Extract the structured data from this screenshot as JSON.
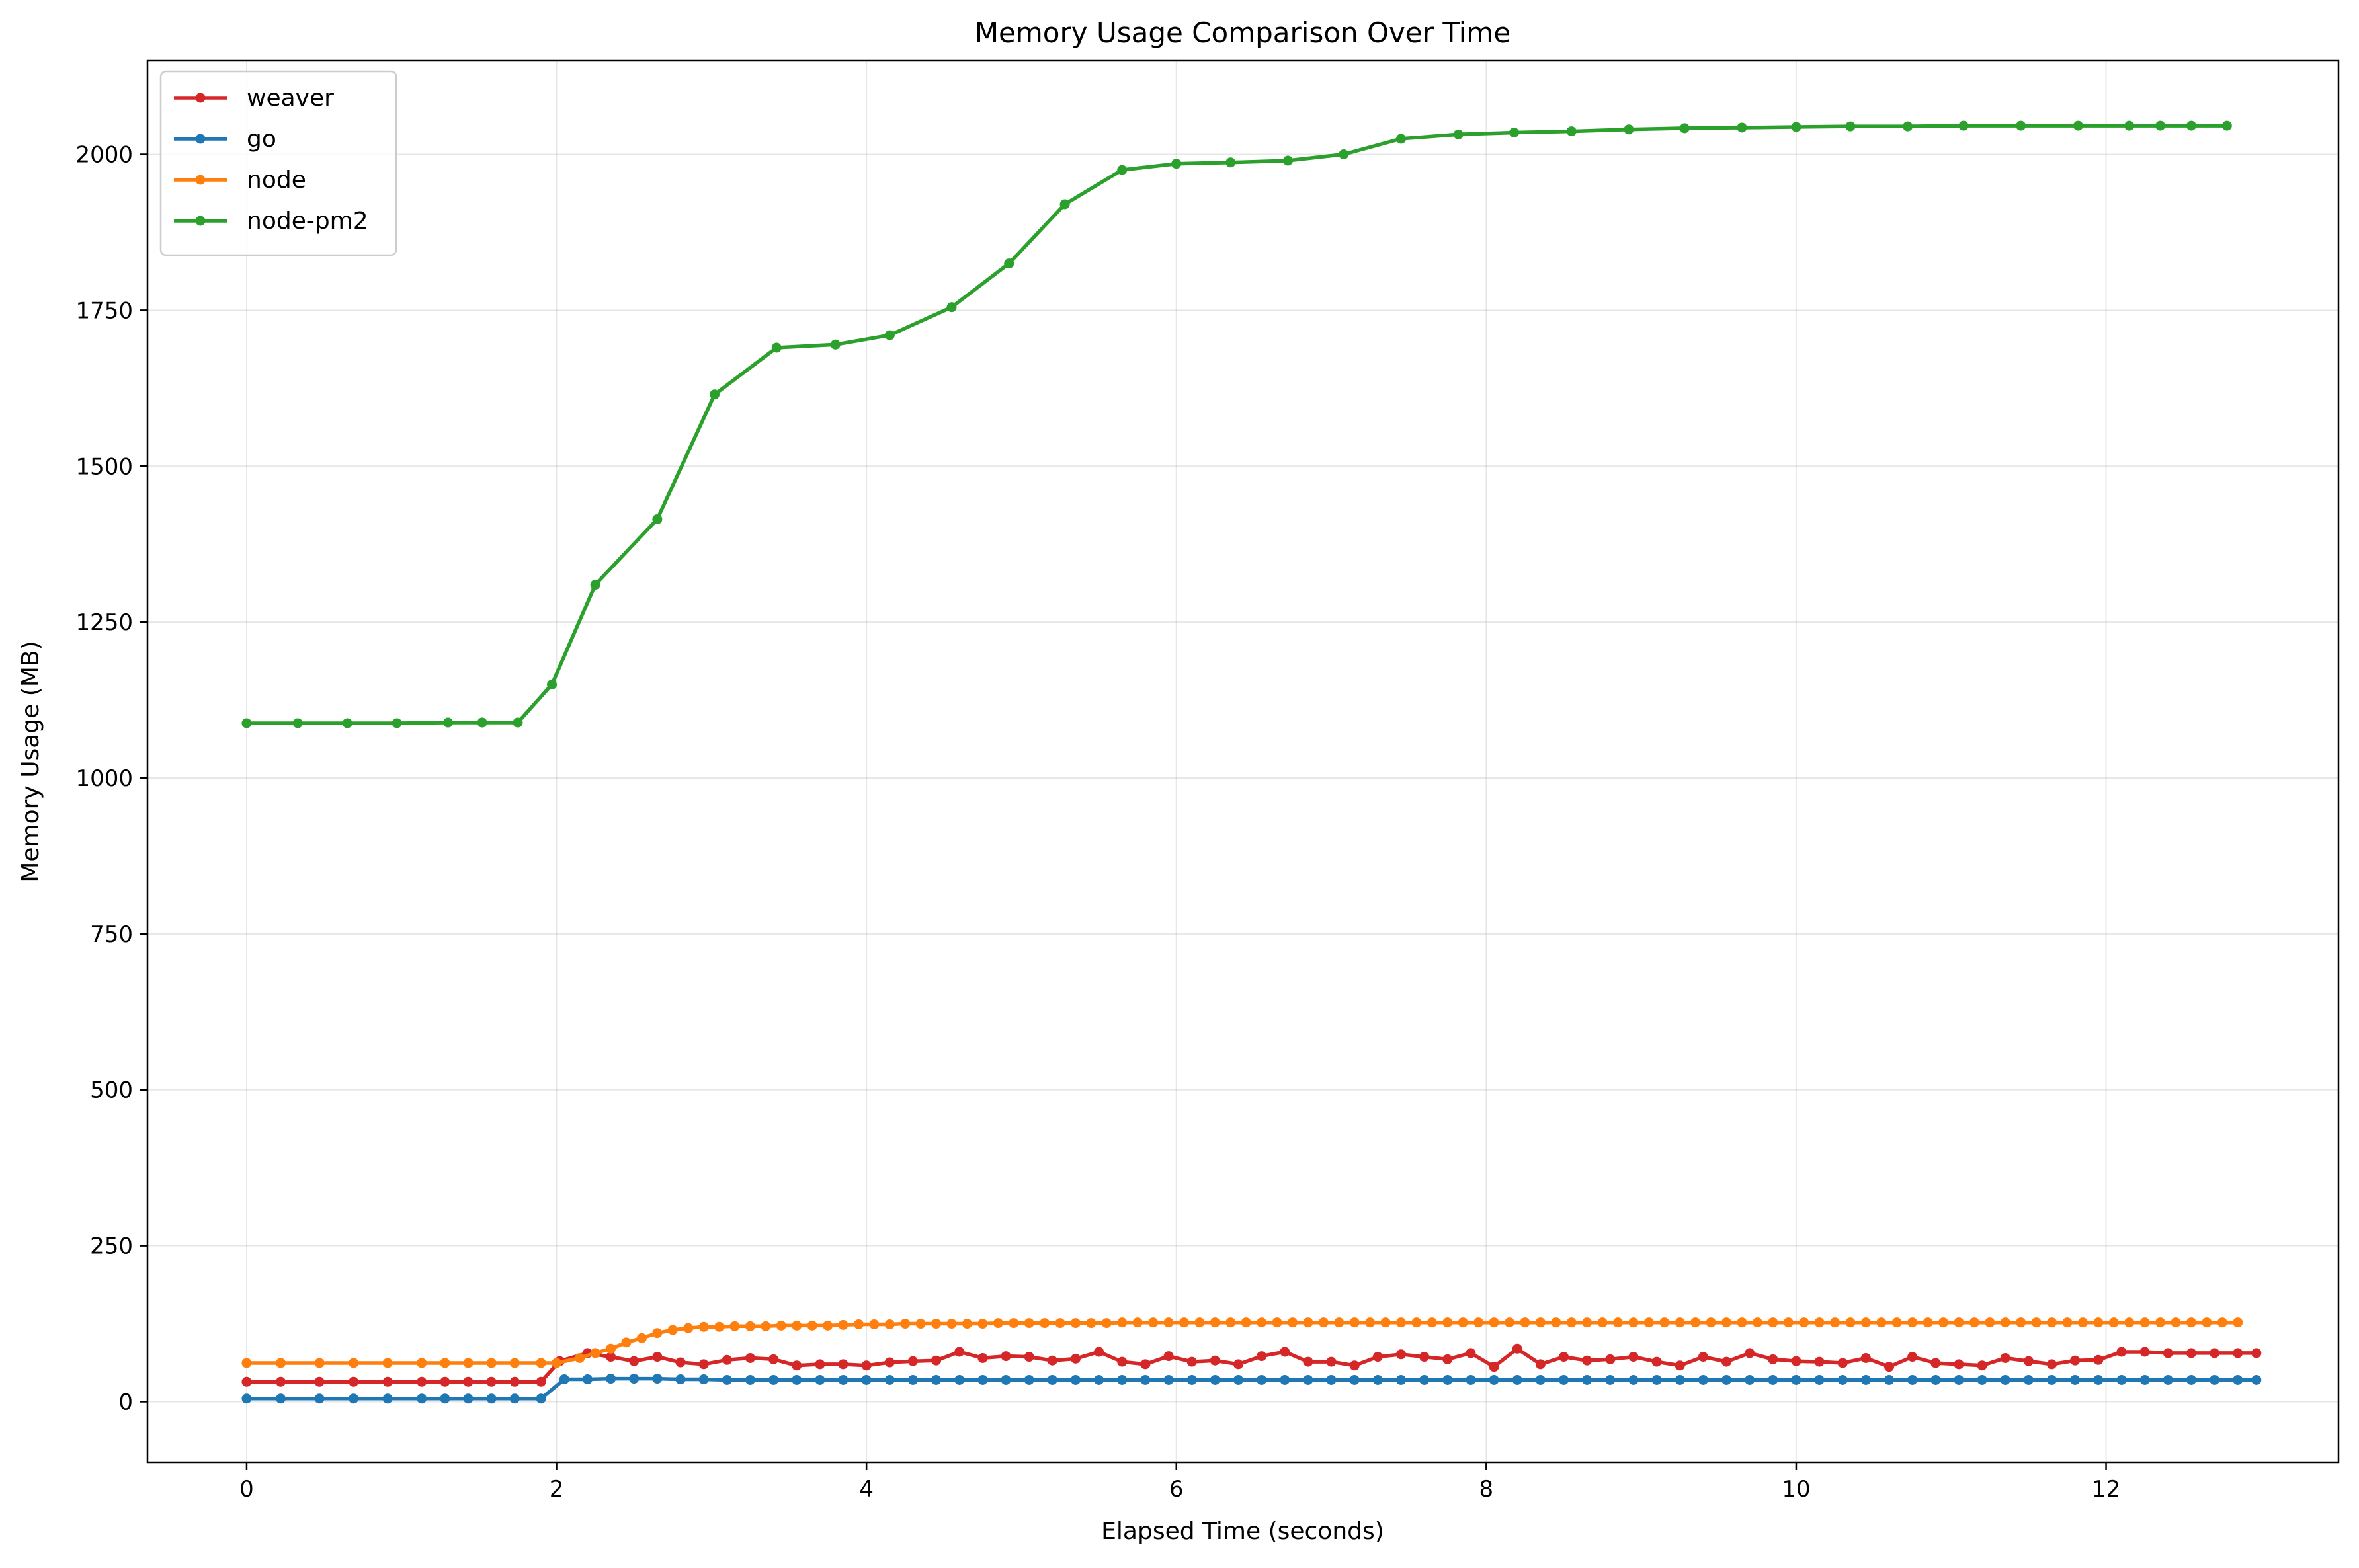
{
  "chart_data": {
    "type": "line",
    "title": "Memory Usage Comparison Over Time",
    "xlabel": "Elapsed Time (seconds)",
    "ylabel": "Memory Usage (MB)",
    "xlim": [
      -0.64,
      13.5
    ],
    "ylim": [
      -97,
      2150
    ],
    "xticks": [
      0,
      2,
      4,
      6,
      8,
      10,
      12
    ],
    "yticks": [
      0,
      250,
      500,
      750,
      1000,
      1250,
      1500,
      1750,
      2000
    ],
    "grid": true,
    "legend_position": "upper-left",
    "series": [
      {
        "name": "weaver",
        "color": "#d62728",
        "x": [
          0,
          0.22,
          0.47,
          0.69,
          0.91,
          1.13,
          1.28,
          1.43,
          1.58,
          1.73,
          1.9,
          2.02,
          2.2,
          2.35,
          2.5,
          2.65,
          2.8,
          2.95,
          3.1,
          3.25,
          3.4,
          3.55,
          3.7,
          3.85,
          4.0,
          4.15,
          4.3,
          4.45,
          4.6,
          4.75,
          4.9,
          5.05,
          5.2,
          5.35,
          5.5,
          5.65,
          5.8,
          5.95,
          6.1,
          6.25,
          6.4,
          6.55,
          6.7,
          6.85,
          7.0,
          7.15,
          7.3,
          7.45,
          7.6,
          7.75,
          7.9,
          8.05,
          8.2,
          8.35,
          8.5,
          8.65,
          8.8,
          8.95,
          9.1,
          9.25,
          9.4,
          9.55,
          9.7,
          9.85,
          10.0,
          10.15,
          10.3,
          10.45,
          10.6,
          10.75,
          10.9,
          11.05,
          11.2,
          11.35,
          11.5,
          11.65,
          11.8,
          11.95,
          12.1,
          12.25,
          12.4,
          12.55,
          12.7,
          12.85,
          12.97
        ],
        "y": [
          32,
          32,
          32,
          32,
          32,
          32,
          32,
          32,
          32,
          32,
          32,
          65,
          78,
          72,
          65,
          72,
          63,
          60,
          67,
          70,
          68,
          58,
          60,
          60,
          58,
          63,
          65,
          66,
          80,
          70,
          73,
          72,
          66,
          69,
          80,
          64,
          60,
          73,
          64,
          66,
          60,
          73,
          80,
          64,
          64,
          58,
          72,
          76,
          72,
          68,
          78,
          56,
          85,
          60,
          72,
          66,
          68,
          72,
          64,
          58,
          72,
          64,
          78,
          68,
          65,
          64,
          62,
          70,
          56,
          72,
          62,
          60,
          58,
          70,
          65,
          60,
          66,
          67,
          80,
          80,
          78,
          78,
          78,
          78,
          78
        ]
      },
      {
        "name": "go",
        "color": "#1f77b4",
        "x": [
          0,
          0.22,
          0.47,
          0.69,
          0.91,
          1.13,
          1.28,
          1.43,
          1.58,
          1.73,
          1.9,
          2.05,
          2.2,
          2.35,
          2.5,
          2.65,
          2.8,
          2.95,
          3.1,
          3.25,
          3.4,
          3.55,
          3.7,
          3.85,
          4.0,
          4.15,
          4.3,
          4.45,
          4.6,
          4.75,
          4.9,
          5.05,
          5.2,
          5.35,
          5.5,
          5.65,
          5.8,
          5.95,
          6.1,
          6.25,
          6.4,
          6.55,
          6.7,
          6.85,
          7.0,
          7.15,
          7.3,
          7.45,
          7.6,
          7.75,
          7.9,
          8.05,
          8.2,
          8.35,
          8.5,
          8.65,
          8.8,
          8.95,
          9.1,
          9.25,
          9.4,
          9.55,
          9.7,
          9.85,
          10.0,
          10.15,
          10.3,
          10.45,
          10.6,
          10.75,
          10.9,
          11.05,
          11.2,
          11.35,
          11.5,
          11.65,
          11.8,
          11.95,
          12.1,
          12.25,
          12.4,
          12.55,
          12.7,
          12.85,
          12.97
        ],
        "y": [
          5,
          5,
          5,
          5,
          5,
          5,
          5,
          5,
          5,
          5,
          5,
          36,
          36,
          37,
          37,
          37,
          36,
          36,
          35,
          35,
          35,
          35,
          35,
          35,
          35,
          35,
          35,
          35,
          35,
          35,
          35,
          35,
          35,
          35,
          35,
          35,
          35,
          35,
          35,
          35,
          35,
          35,
          35,
          35,
          35,
          35,
          35,
          35,
          35,
          35,
          35,
          35,
          35,
          35,
          35,
          35,
          35,
          35,
          35,
          35,
          35,
          35,
          35,
          35,
          35,
          35,
          35,
          35,
          35,
          35,
          35,
          35,
          35,
          35,
          35,
          35,
          35,
          35,
          35,
          35,
          35,
          35,
          35,
          35,
          35
        ]
      },
      {
        "name": "node",
        "color": "#ff7f0e",
        "x": [
          0,
          0.22,
          0.47,
          0.69,
          0.91,
          1.13,
          1.28,
          1.43,
          1.58,
          1.73,
          1.9,
          2.0,
          2.15,
          2.25,
          2.35,
          2.45,
          2.55,
          2.65,
          2.75,
          2.85,
          2.95,
          3.05,
          3.15,
          3.25,
          3.35,
          3.45,
          3.55,
          3.65,
          3.75,
          3.85,
          3.95,
          4.05,
          4.15,
          4.25,
          4.35,
          4.45,
          4.55,
          4.65,
          4.75,
          4.85,
          4.95,
          5.05,
          5.15,
          5.25,
          5.35,
          5.45,
          5.55,
          5.65,
          5.75,
          5.85,
          5.95,
          6.05,
          6.15,
          6.25,
          6.35,
          6.45,
          6.55,
          6.65,
          6.75,
          6.85,
          6.95,
          7.05,
          7.15,
          7.25,
          7.35,
          7.45,
          7.55,
          7.65,
          7.75,
          7.85,
          7.95,
          8.05,
          8.15,
          8.25,
          8.35,
          8.45,
          8.55,
          8.65,
          8.75,
          8.85,
          8.95,
          9.05,
          9.15,
          9.25,
          9.35,
          9.45,
          9.55,
          9.65,
          9.75,
          9.85,
          9.95,
          10.05,
          10.15,
          10.25,
          10.35,
          10.45,
          10.55,
          10.65,
          10.75,
          10.85,
          10.95,
          11.05,
          11.15,
          11.25,
          11.35,
          11.45,
          11.55,
          11.65,
          11.75,
          11.85,
          11.95,
          12.05,
          12.15,
          12.25,
          12.35,
          12.45,
          12.55,
          12.65,
          12.75,
          12.85
        ],
        "y": [
          62,
          62,
          62,
          62,
          62,
          62,
          62,
          62,
          62,
          62,
          62,
          62,
          70,
          78,
          85,
          95,
          102,
          110,
          115,
          118,
          120,
          120,
          121,
          121,
          121,
          122,
          122,
          122,
          122,
          123,
          124,
          124,
          124,
          125,
          125,
          125,
          125,
          125,
          125,
          126,
          126,
          126,
          126,
          126,
          126,
          126,
          126,
          127,
          127,
          127,
          127,
          127,
          127,
          127,
          127,
          127,
          127,
          127,
          127,
          127,
          127,
          127,
          127,
          127,
          127,
          127,
          127,
          127,
          127,
          127,
          127,
          127,
          127,
          127,
          127,
          127,
          127,
          127,
          127,
          127,
          127,
          127,
          127,
          127,
          127,
          127,
          127,
          127,
          127,
          127,
          127,
          127,
          127,
          127,
          127,
          127,
          127,
          127,
          127,
          127,
          127,
          127,
          127,
          127,
          127,
          127,
          127,
          127,
          127,
          127,
          127,
          127,
          127,
          127,
          127,
          127,
          127,
          127,
          127,
          127
        ]
      },
      {
        "name": "node-pm2",
        "color": "#2ca02c",
        "x": [
          0,
          0.33,
          0.65,
          0.97,
          1.3,
          1.52,
          1.75,
          1.97,
          2.25,
          2.65,
          3.02,
          3.42,
          3.8,
          4.15,
          4.55,
          4.92,
          5.28,
          5.65,
          6.0,
          6.35,
          6.72,
          7.08,
          7.45,
          7.82,
          8.18,
          8.55,
          8.92,
          9.28,
          9.65,
          10.0,
          10.35,
          10.72,
          11.08,
          11.45,
          11.82,
          12.15,
          12.35,
          12.55,
          12.78
        ],
        "y": [
          1088,
          1088,
          1088,
          1088,
          1089,
          1089,
          1089,
          1150,
          1310,
          1415,
          1615,
          1690,
          1695,
          1710,
          1755,
          1825,
          1920,
          1975,
          1985,
          1987,
          1990,
          2000,
          2025,
          2032,
          2035,
          2037,
          2040,
          2042,
          2043,
          2044,
          2045,
          2045,
          2046,
          2046,
          2046,
          2046,
          2046,
          2046,
          2046
        ]
      }
    ]
  }
}
